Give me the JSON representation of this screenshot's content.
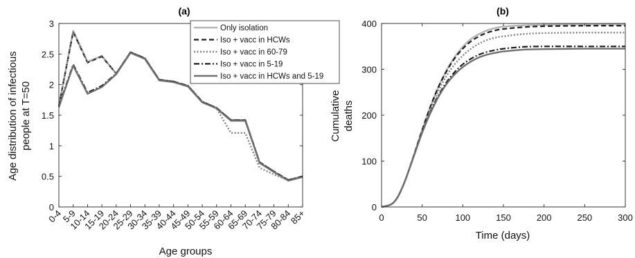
{
  "chart_data": [
    {
      "type": "line",
      "title": "(a)",
      "xlabel": "Age groups",
      "ylabel": "Age distribution of infectious people at T=50",
      "ylabel_lines": [
        "Age distribution of infectious",
        "people at T=50"
      ],
      "categories": [
        "0-4",
        "5-9",
        "10-14",
        "15-19",
        "20-24",
        "25-29",
        "30-34",
        "35-39",
        "40-44",
        "45-49",
        "50-54",
        "55-59",
        "60-64",
        "65-69",
        "70-74",
        "75-79",
        "80-84",
        "85+"
      ],
      "ylim": [
        0,
        3
      ],
      "yticks": [
        0,
        0.5,
        1,
        1.5,
        2,
        2.5,
        3
      ],
      "ytick_labels": [
        "0",
        "0.5",
        "1",
        "1.5",
        "2",
        "2.5",
        "3"
      ],
      "grid": false,
      "legend_placement": "top-right",
      "series": [
        {
          "name": "Only isolation",
          "style": "solid-light",
          "values": [
            1.65,
            2.88,
            2.37,
            2.47,
            2.18,
            2.53,
            2.43,
            2.08,
            2.05,
            1.98,
            1.72,
            1.62,
            1.42,
            1.42,
            0.73,
            0.58,
            0.44,
            0.5
          ]
        },
        {
          "name": "Iso + vacc in HCWs",
          "style": "dashed",
          "values": [
            1.65,
            2.86,
            2.36,
            2.46,
            2.18,
            2.53,
            2.43,
            2.08,
            2.05,
            1.98,
            1.72,
            1.62,
            1.42,
            1.42,
            0.73,
            0.58,
            0.44,
            0.5
          ]
        },
        {
          "name": "Iso + vacc in 60-79",
          "style": "dotted",
          "values": [
            1.65,
            2.87,
            2.37,
            2.47,
            2.18,
            2.53,
            2.43,
            2.08,
            2.05,
            1.98,
            1.72,
            1.61,
            1.21,
            1.21,
            0.64,
            0.53,
            0.44,
            0.5
          ]
        },
        {
          "name": "Iso + vacc in 5-19",
          "style": "dashdot",
          "values": [
            1.65,
            2.33,
            1.87,
            1.98,
            2.18,
            2.53,
            2.43,
            2.08,
            2.05,
            1.98,
            1.72,
            1.62,
            1.42,
            1.42,
            0.73,
            0.58,
            0.44,
            0.5
          ]
        },
        {
          "name": "Iso + vacc in HCWs and 5-19",
          "style": "solid-dark",
          "values": [
            1.63,
            2.31,
            1.85,
            1.96,
            2.17,
            2.52,
            2.42,
            2.07,
            2.04,
            1.97,
            1.71,
            1.61,
            1.41,
            1.41,
            0.72,
            0.57,
            0.43,
            0.49
          ]
        }
      ]
    },
    {
      "type": "line",
      "title": "(b)",
      "xlabel": "Time (days)",
      "ylabel": "Cumulative deaths",
      "ylabel_lines": [
        "Cumulative",
        "deaths"
      ],
      "xlim": [
        0,
        300
      ],
      "ylim": [
        0,
        400
      ],
      "xticks": [
        0,
        50,
        100,
        150,
        200,
        250,
        300
      ],
      "yticks": [
        0,
        100,
        200,
        300,
        400
      ],
      "grid": false,
      "series": [
        {
          "name": "Only isolation",
          "style": "solid-light",
          "x": [
            0,
            10,
            15,
            20,
            25,
            30,
            35,
            40,
            50,
            60,
            70,
            80,
            90,
            100,
            110,
            120,
            130,
            140,
            150,
            175,
            200,
            250,
            300
          ],
          "values": [
            0,
            4,
            10,
            22,
            40,
            62,
            88,
            114,
            168,
            218,
            262,
            298,
            327,
            349,
            366,
            377,
            385,
            390,
            393,
            396,
            397,
            398,
            398
          ]
        },
        {
          "name": "Iso + vacc in HCWs",
          "style": "dashed",
          "x": [
            0,
            10,
            15,
            20,
            25,
            30,
            35,
            40,
            50,
            60,
            70,
            80,
            90,
            100,
            110,
            120,
            130,
            140,
            150,
            175,
            200,
            250,
            300
          ],
          "values": [
            0,
            4,
            10,
            22,
            40,
            62,
            88,
            114,
            168,
            218,
            261,
            296,
            324,
            345,
            361,
            372,
            380,
            385,
            388,
            392,
            394,
            395,
            395
          ]
        },
        {
          "name": "Iso + vacc in 60-79",
          "style": "dotted",
          "x": [
            0,
            10,
            15,
            20,
            25,
            30,
            35,
            40,
            50,
            60,
            70,
            80,
            90,
            100,
            110,
            120,
            130,
            140,
            150,
            175,
            200,
            250,
            300
          ],
          "values": [
            0,
            4,
            10,
            22,
            40,
            62,
            87,
            112,
            164,
            212,
            253,
            286,
            311,
            330,
            345,
            356,
            364,
            369,
            372,
            377,
            379,
            380,
            380
          ]
        },
        {
          "name": "Iso + vacc in 5-19",
          "style": "dashdot",
          "x": [
            0,
            10,
            15,
            20,
            25,
            30,
            35,
            40,
            50,
            60,
            70,
            80,
            90,
            100,
            110,
            120,
            130,
            140,
            150,
            175,
            200,
            250,
            300
          ],
          "values": [
            0,
            4,
            10,
            22,
            40,
            62,
            87,
            112,
            163,
            206,
            243,
            272,
            294,
            311,
            323,
            332,
            338,
            342,
            345,
            349,
            350,
            350,
            350
          ]
        },
        {
          "name": "Iso + vacc in HCWs and 5-19",
          "style": "solid-dark",
          "x": [
            0,
            10,
            15,
            20,
            25,
            30,
            35,
            40,
            50,
            60,
            70,
            80,
            90,
            100,
            110,
            120,
            130,
            140,
            150,
            175,
            200,
            250,
            300
          ],
          "values": [
            0,
            4,
            10,
            22,
            40,
            62,
            87,
            112,
            162,
            204,
            240,
            268,
            289,
            305,
            317,
            326,
            332,
            336,
            339,
            343,
            344,
            345,
            345
          ]
        }
      ]
    }
  ],
  "styles": {
    "solid-light": {
      "color": "#b3b3b3",
      "dash": "",
      "width": 2.4
    },
    "dashed": {
      "color": "#1a1a1a",
      "dash": "7 4",
      "width": 2.2
    },
    "dotted": {
      "color": "#808080",
      "dash": "2 2.5",
      "width": 2.4
    },
    "dashdot": {
      "color": "#1a1a1a",
      "dash": "8 3 2 3",
      "width": 2.2
    },
    "solid-dark": {
      "color": "#6e6e6e",
      "dash": "",
      "width": 2.4
    }
  }
}
